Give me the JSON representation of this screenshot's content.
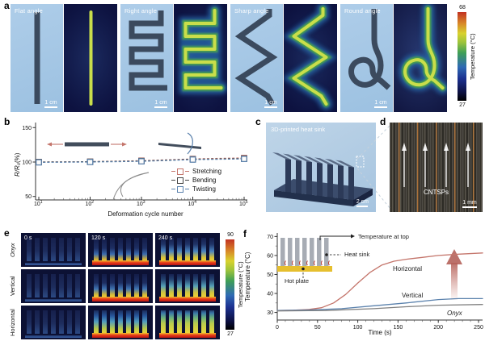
{
  "figure_labels": {
    "a": "a",
    "b": "b",
    "c": "c",
    "d": "d",
    "e": "e",
    "f": "f"
  },
  "panel_a": {
    "samples": [
      {
        "title": "Flat angle",
        "shape": "flat",
        "scale_bar": "1 cm"
      },
      {
        "title": "Right angle",
        "shape": "right",
        "scale_bar": "1 cm"
      },
      {
        "title": "Sharp angle",
        "shape": "sharp",
        "scale_bar": "1 cm"
      },
      {
        "title": "Round angle",
        "shape": "round",
        "scale_bar": "1 cm"
      }
    ],
    "colorbar": {
      "max": "68",
      "min": "27",
      "label": "Temperature (°C)"
    }
  },
  "panel_c": {
    "caption": "3D-printed heat sink",
    "scale_bar": "2 cm"
  },
  "panel_d": {
    "annotation": "CNTSPs",
    "scale_bar": "1 mm"
  },
  "panel_e": {
    "rows": [
      "Onyx",
      "Vertical",
      "Horizontal"
    ],
    "times": [
      "0 s",
      "120 s",
      "240 s"
    ],
    "colorbar": {
      "max": "90",
      "min": "27",
      "label": "Temperature (°C)"
    }
  },
  "panel_f_annotations": {
    "temperature_at_top": "Temperature at top",
    "heat_sink": "Heat sink",
    "hot_plate": "Hot plate"
  },
  "chart_data": [
    {
      "id": "b",
      "type": "scatter",
      "xlabel": "Deformation cycle number",
      "ylabel_math": "R/R₀",
      "ylabel_unit": " (%)",
      "x_log_exponents": [
        1,
        2,
        3,
        4,
        5
      ],
      "x": [
        10,
        100,
        1000,
        10000,
        100000
      ],
      "y_ticks": [
        50,
        100,
        150
      ],
      "ylim": [
        45,
        155
      ],
      "series": [
        {
          "name": "Stretching",
          "color": "#c4756b",
          "values": [
            100,
            100.5,
            102,
            104.5,
            106
          ],
          "errors": [
            2,
            2,
            2.5,
            3,
            3.5
          ]
        },
        {
          "name": "Bending",
          "color": "#454545",
          "values": [
            100,
            100.5,
            101.5,
            104,
            105
          ],
          "errors": [
            2,
            2,
            2,
            2.5,
            3
          ]
        },
        {
          "name": "Twisting",
          "color": "#5b82ad",
          "values": [
            99.5,
            100,
            101,
            103.5,
            104.5
          ],
          "errors": [
            2,
            2,
            2,
            2.5,
            3
          ]
        }
      ]
    },
    {
      "id": "f",
      "type": "line",
      "xlabel": "Time (s)",
      "ylabel": "Temperature (°C)",
      "x_ticks": [
        0,
        50,
        100,
        150,
        200,
        250
      ],
      "y_ticks": [
        30,
        40,
        50,
        60,
        70
      ],
      "xlim": [
        0,
        255
      ],
      "ylim": [
        26,
        71
      ],
      "series": [
        {
          "name": "Horizontal",
          "color": "#c4756b",
          "points": [
            [
              0,
              31
            ],
            [
              20,
              31.2
            ],
            [
              40,
              31.6
            ],
            [
              55,
              32.5
            ],
            [
              70,
              35
            ],
            [
              85,
              39.5
            ],
            [
              100,
              45.5
            ],
            [
              115,
              51
            ],
            [
              130,
              55
            ],
            [
              145,
              57
            ],
            [
              160,
              58
            ],
            [
              180,
              59
            ],
            [
              200,
              60
            ],
            [
              225,
              60.7
            ],
            [
              255,
              61.3
            ]
          ]
        },
        {
          "name": "Vertical",
          "color": "#5b82ad",
          "points": [
            [
              0,
              31
            ],
            [
              40,
              31.3
            ],
            [
              80,
              32
            ],
            [
              120,
              33.5
            ],
            [
              160,
              35
            ],
            [
              200,
              36.8
            ],
            [
              225,
              37.3
            ],
            [
              255,
              37.3
            ]
          ]
        },
        {
          "name": "Onyx",
          "color": "#808080",
          "points": [
            [
              0,
              30.8
            ],
            [
              60,
              31
            ],
            [
              120,
              32
            ],
            [
              160,
              33
            ],
            [
              200,
              33.8
            ],
            [
              255,
              34.2
            ]
          ]
        }
      ]
    }
  ]
}
